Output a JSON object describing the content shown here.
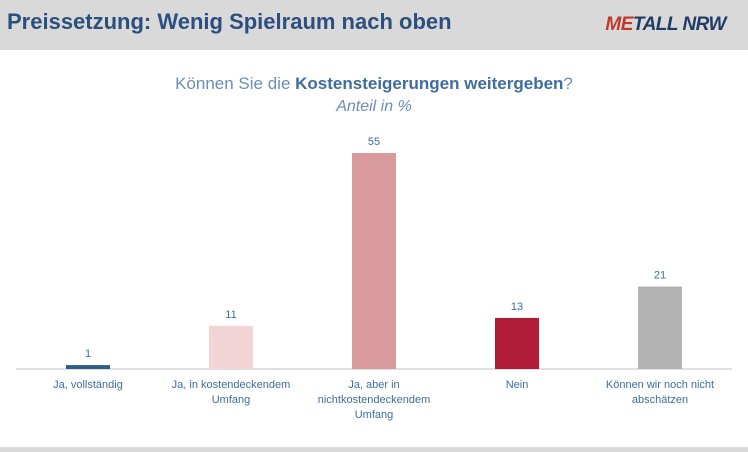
{
  "header": {
    "title": "Preissetzung: Wenig Spielraum nach oben",
    "logo_red": "ME",
    "logo_rest": "TALL NRW"
  },
  "chart_data": {
    "type": "bar",
    "title_pre": "Können Sie die ",
    "title_bold": "Kostensteigerungen weitergeben",
    "title_post": "?",
    "subtitle": "Anteil in %",
    "categories": [
      "Ja, vollständig",
      "Ja, in kostendeckendem Umfang",
      "Ja, aber in nichtkostendeckendem Umfang",
      "Nein",
      "Können wir noch nicht abschätzen"
    ],
    "values": [
      1,
      11,
      55,
      13,
      21
    ],
    "colors": [
      "#2e5a8c",
      "#f2d4d7",
      "#d99a9e",
      "#b01c35",
      "#b3b3b3"
    ],
    "ylim": [
      0,
      60
    ],
    "grid": false,
    "legend": "none"
  },
  "colors": {
    "header_bg": "#d9d9d9",
    "title": "#2b4f7e",
    "label": "#3f6d9e"
  }
}
